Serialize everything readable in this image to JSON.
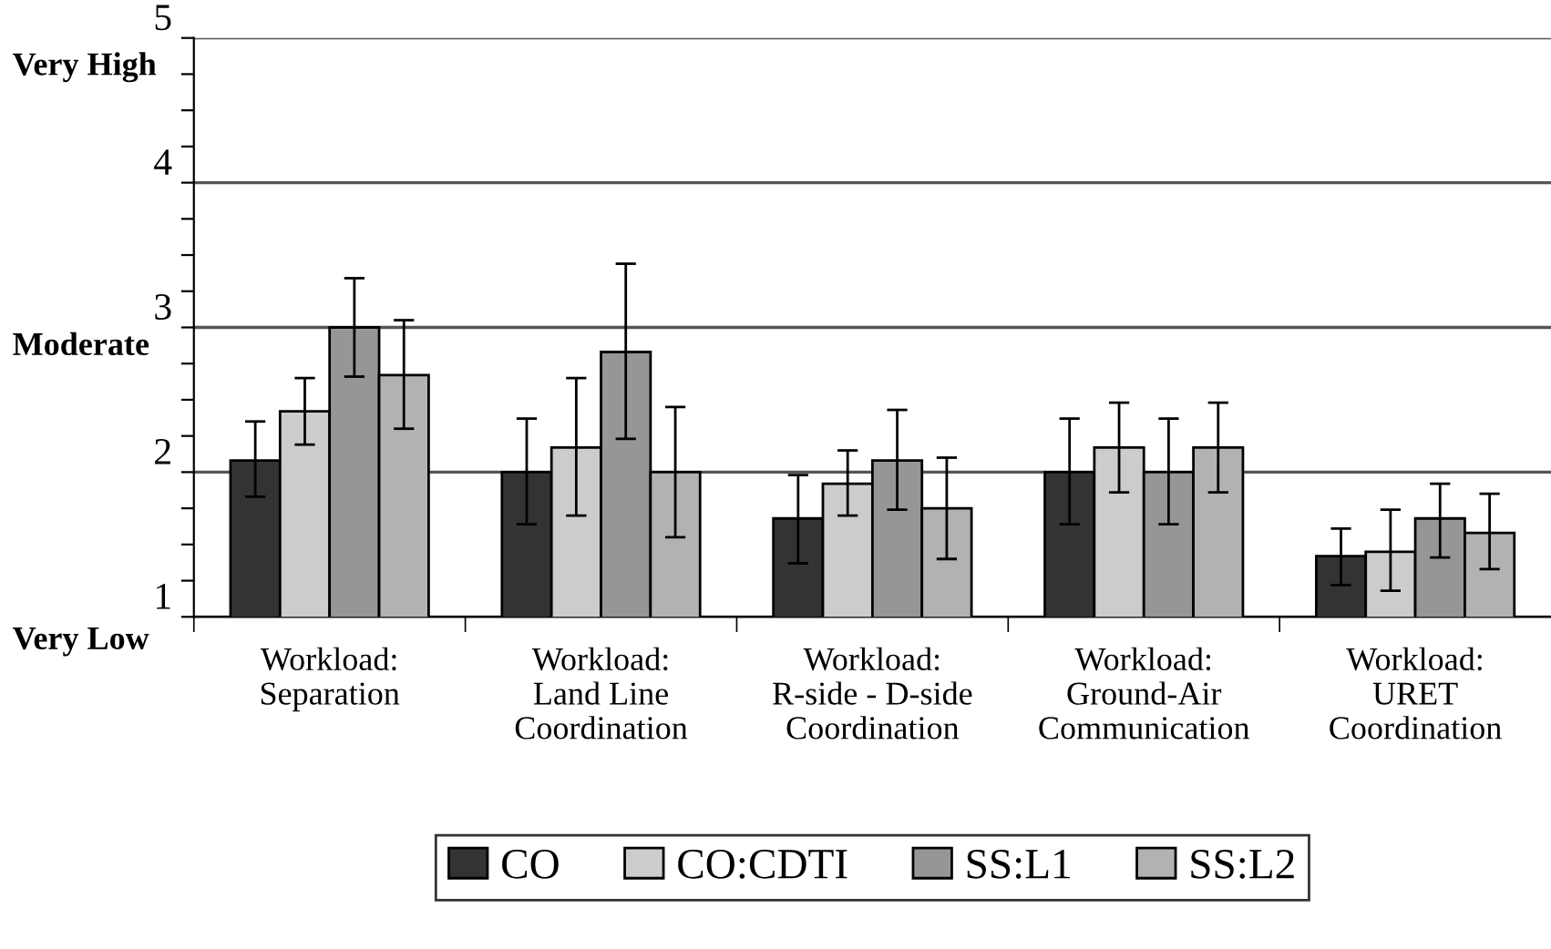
{
  "chart_data": {
    "type": "bar",
    "categories": [
      "Workload:\nSeparation",
      "Workload:\nLand Line\nCoordination",
      "Workload:\nR-side - D-side\nCoordination",
      "Workload:\nGround-Air\nCommunication",
      "Workload:\nURET\nCoordination"
    ],
    "series": [
      {
        "name": "CO",
        "color": "#333333",
        "values": [
          2.08,
          2.0,
          1.68,
          2.0,
          1.42
        ],
        "errors": [
          [
            1.83,
            2.35
          ],
          [
            1.64,
            2.37
          ],
          [
            1.37,
            1.98
          ],
          [
            1.64,
            2.37
          ],
          [
            1.22,
            1.61
          ]
        ]
      },
      {
        "name": "CO:CDTI",
        "color": "#cccccc",
        "values": [
          2.42,
          2.17,
          1.92,
          2.17,
          1.45
        ],
        "errors": [
          [
            2.19,
            2.65
          ],
          [
            1.7,
            2.65
          ],
          [
            1.7,
            2.15
          ],
          [
            1.86,
            2.48
          ],
          [
            1.18,
            1.74
          ]
        ]
      },
      {
        "name": "SS:L1",
        "color": "#969696",
        "values": [
          3.0,
          2.83,
          2.08,
          2.0,
          1.68
        ],
        "errors": [
          [
            2.66,
            3.34
          ],
          [
            2.23,
            3.44
          ],
          [
            1.74,
            2.43
          ],
          [
            1.64,
            2.37
          ],
          [
            1.41,
            1.92
          ]
        ]
      },
      {
        "name": "SS:L2",
        "color": "#b2b2b2",
        "values": [
          2.67,
          2.0,
          1.75,
          2.17,
          1.58
        ],
        "errors": [
          [
            2.3,
            3.05
          ],
          [
            1.55,
            2.45
          ],
          [
            1.4,
            2.1
          ],
          [
            1.86,
            2.48
          ],
          [
            1.33,
            1.85
          ]
        ]
      }
    ],
    "ylim": [
      1,
      5
    ],
    "yticks": [
      1,
      {
        "value": 1.25,
        "label": null
      },
      {
        "value": 1.5,
        "label": null
      },
      {
        "value": 1.75,
        "label": null
      },
      2,
      {
        "value": 2.25,
        "label": null
      },
      {
        "value": 2.5,
        "label": null
      },
      {
        "value": 2.75,
        "label": null
      },
      3,
      {
        "value": 3.25,
        "label": null
      },
      {
        "value": 3.5,
        "label": null
      },
      {
        "value": 3.75,
        "label": null
      },
      4,
      {
        "value": 4.25,
        "label": null
      },
      {
        "value": 4.5,
        "label": null
      },
      {
        "value": 4.75,
        "label": null
      },
      5
    ],
    "annotations": [
      "Very High",
      "Moderate",
      "Very Low"
    ],
    "grid": "y",
    "legend": "bottom"
  }
}
